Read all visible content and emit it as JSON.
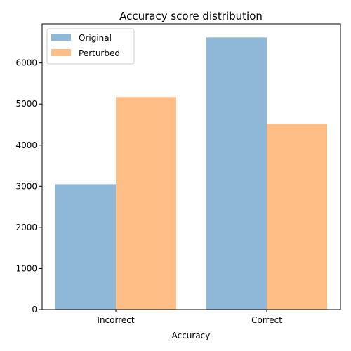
{
  "chart_data": {
    "type": "bar",
    "title": "Accuracy score distribution",
    "xlabel": "Accuracy",
    "ylabel": "",
    "categories": [
      "Incorrect",
      "Correct"
    ],
    "series": [
      {
        "name": "Original",
        "values": [
          3050,
          6620
        ],
        "color": "#8fb8d8"
      },
      {
        "name": "Perturbed",
        "values": [
          5170,
          4520
        ],
        "color": "#ffbe85"
      }
    ],
    "ylim": [
      0,
      6950
    ],
    "yticks": [
      0,
      1000,
      2000,
      3000,
      4000,
      5000,
      6000
    ],
    "grid": false,
    "legend_position": "top-left"
  }
}
